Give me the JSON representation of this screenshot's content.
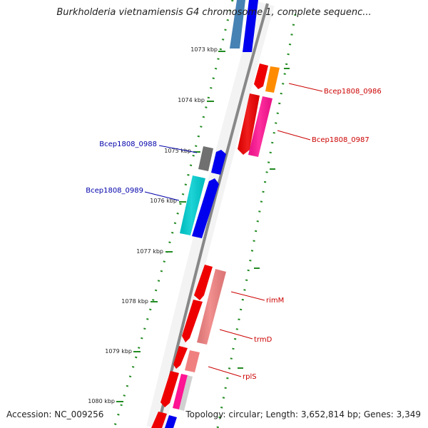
{
  "title": "Burkholderia vietnamiensis G4 chromosome 1, complete sequenc...",
  "footer": {
    "accession": "Accession: NC_009256",
    "summary": "Topology: circular; Length: 3,652,814 bp; Genes: 3,349"
  },
  "ticks": [
    "1073 kbp",
    "1074 kbp",
    "1075 kbp",
    "1076 kbp",
    "1077 kbp",
    "1078 kbp",
    "1079 kbp",
    "1080 kbp"
  ],
  "gene_labels": [
    {
      "text": "Bcep1808_0986",
      "color": "#cc0000"
    },
    {
      "text": "Bcep1808_0987",
      "color": "#cc0000"
    },
    {
      "text": "Bcep1808_0988",
      "color": "#0000aa"
    },
    {
      "text": "Bcep1808_0989",
      "color": "#0000aa"
    },
    {
      "text": "rimM",
      "color": "#cc0000"
    },
    {
      "text": "trmD",
      "color": "#cc0000"
    },
    {
      "text": "rplS",
      "color": "#cc0000"
    }
  ],
  "colors": {
    "backbone": "#888888",
    "dotted_track": "#228b22",
    "forward_label": "#cc0000",
    "reverse_label": "#0000aa"
  }
}
